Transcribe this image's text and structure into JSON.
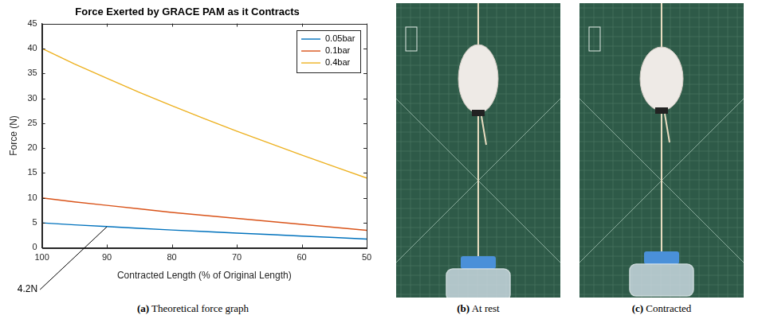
{
  "chart_data": {
    "type": "line",
    "title": "Force Exerted by GRACE PAM as it Contracts",
    "caption": {
      "letter": "(a)",
      "text": "Theoretical force graph"
    },
    "x_label": "Contracted Length (% of Original Length)",
    "y_label": "Force (N)",
    "x": [
      100,
      95,
      90,
      85,
      80,
      75,
      70,
      65,
      60,
      55,
      50
    ],
    "series": [
      {
        "name": "0.05bar",
        "color": "#0072bd",
        "values": [
          5.0,
          4.6,
          4.25,
          3.9,
          3.55,
          3.25,
          2.95,
          2.65,
          2.35,
          2.05,
          1.75
        ]
      },
      {
        "name": "0.1bar",
        "color": "#d95319",
        "values": [
          10.0,
          9.2,
          8.5,
          7.8,
          7.1,
          6.5,
          5.9,
          5.3,
          4.7,
          4.1,
          3.5
        ]
      },
      {
        "name": "0.4bar",
        "color": "#edb120",
        "values": [
          40.0,
          36.9,
          34.0,
          31.2,
          28.5,
          25.9,
          23.4,
          21.0,
          18.6,
          16.3,
          14.0
        ]
      }
    ],
    "xlim": [
      100,
      50
    ],
    "xticks": [
      100,
      90,
      80,
      70,
      60,
      50
    ],
    "ylim": [
      0,
      45
    ],
    "yticks": [
      0,
      5,
      10,
      15,
      20,
      25,
      30,
      35,
      40,
      45
    ],
    "grid": false,
    "legend": "top-right",
    "annotations": [
      {
        "text": "4.2N",
        "x": 90,
        "y": 4.2
      }
    ]
  },
  "photos": [
    {
      "letter": "(b)",
      "text": "At rest"
    },
    {
      "letter": "(c)",
      "text": "Contracted"
    }
  ]
}
